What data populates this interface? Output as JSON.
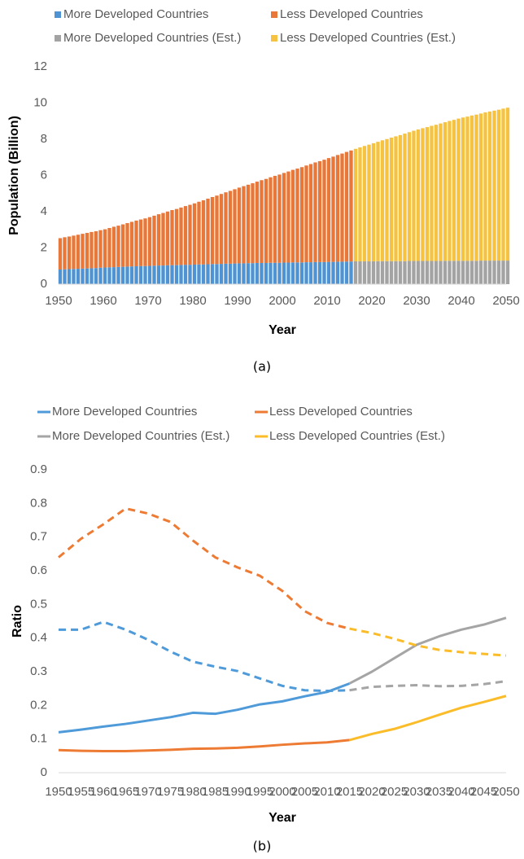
{
  "chart_data": [
    {
      "type": "bar",
      "stacked": true,
      "caption": "(a)",
      "xlabel": "Year",
      "ylabel": "Population (Billion)",
      "x": [
        1950,
        1951,
        1952,
        1953,
        1954,
        1955,
        1956,
        1957,
        1958,
        1959,
        1960,
        1961,
        1962,
        1963,
        1964,
        1965,
        1966,
        1967,
        1968,
        1969,
        1970,
        1971,
        1972,
        1973,
        1974,
        1975,
        1976,
        1977,
        1978,
        1979,
        1980,
        1981,
        1982,
        1983,
        1984,
        1985,
        1986,
        1987,
        1988,
        1989,
        1990,
        1991,
        1992,
        1993,
        1994,
        1995,
        1996,
        1997,
        1998,
        1999,
        2000,
        2001,
        2002,
        2003,
        2004,
        2005,
        2006,
        2007,
        2008,
        2009,
        2010,
        2011,
        2012,
        2013,
        2014,
        2015,
        2016,
        2017,
        2018,
        2019,
        2020,
        2021,
        2022,
        2023,
        2024,
        2025,
        2026,
        2027,
        2028,
        2029,
        2030,
        2031,
        2032,
        2033,
        2034,
        2035,
        2036,
        2037,
        2038,
        2039,
        2040,
        2041,
        2042,
        2043,
        2044,
        2045,
        2046,
        2047,
        2048,
        2049,
        2050
      ],
      "xlim": [
        1950,
        2050
      ],
      "xticks": [
        1950,
        1960,
        1970,
        1980,
        1990,
        2000,
        2010,
        2020,
        2030,
        2040,
        2050
      ],
      "ylim": [
        0,
        12
      ],
      "yticks": [
        0,
        2,
        4,
        6,
        8,
        10,
        12
      ],
      "grid": false,
      "series": [
        {
          "name": "More Developed Countries",
          "color": "#4f93d2",
          "values": [
            0.81,
            0.82,
            0.83,
            0.84,
            0.85,
            0.86,
            0.87,
            0.88,
            0.89,
            0.91,
            0.92,
            0.93,
            0.94,
            0.95,
            0.96,
            0.97,
            0.98,
            0.99,
            1.0,
            1.0,
            1.01,
            1.02,
            1.03,
            1.03,
            1.04,
            1.05,
            1.05,
            1.06,
            1.07,
            1.07,
            1.08,
            1.09,
            1.09,
            1.1,
            1.11,
            1.11,
            1.12,
            1.13,
            1.13,
            1.14,
            1.15,
            1.15,
            1.16,
            1.16,
            1.17,
            1.17,
            1.17,
            1.18,
            1.18,
            1.18,
            1.19,
            1.19,
            1.2,
            1.2,
            1.2,
            1.21,
            1.21,
            1.22,
            1.22,
            1.22,
            1.23,
            1.23,
            1.24,
            1.24,
            1.25,
            1.25,
            null,
            null,
            null,
            null,
            null,
            null,
            null,
            null,
            null,
            null,
            null,
            null,
            null,
            null,
            null,
            null,
            null,
            null,
            null,
            null,
            null,
            null,
            null,
            null,
            null,
            null,
            null,
            null,
            null,
            null,
            null,
            null,
            null,
            null,
            null
          ]
        },
        {
          "name": "Less Developed Countries",
          "color": "#e8773a",
          "values": [
            1.73,
            1.77,
            1.8,
            1.84,
            1.88,
            1.92,
            1.96,
            2.0,
            2.03,
            2.07,
            2.11,
            2.17,
            2.23,
            2.28,
            2.34,
            2.4,
            2.46,
            2.52,
            2.57,
            2.63,
            2.69,
            2.76,
            2.83,
            2.9,
            2.97,
            3.04,
            3.1,
            3.17,
            3.24,
            3.31,
            3.38,
            3.46,
            3.54,
            3.62,
            3.7,
            3.78,
            3.86,
            3.94,
            4.02,
            4.1,
            4.18,
            4.26,
            4.33,
            4.41,
            4.49,
            4.57,
            4.64,
            4.72,
            4.8,
            4.87,
            4.95,
            5.03,
            5.11,
            5.18,
            5.26,
            5.34,
            5.42,
            5.5,
            5.57,
            5.65,
            5.73,
            5.81,
            5.89,
            5.97,
            6.05,
            6.13,
            null,
            null,
            null,
            null,
            null,
            null,
            null,
            null,
            null,
            null,
            null,
            null,
            null,
            null,
            null,
            null,
            null,
            null,
            null,
            null,
            null,
            null,
            null,
            null,
            null,
            null,
            null,
            null,
            null,
            null,
            null,
            null,
            null,
            null,
            null
          ]
        },
        {
          "name": "More Developed Countries (Est.)",
          "color": "#a3a3a3",
          "values": [
            null,
            null,
            null,
            null,
            null,
            null,
            null,
            null,
            null,
            null,
            null,
            null,
            null,
            null,
            null,
            null,
            null,
            null,
            null,
            null,
            null,
            null,
            null,
            null,
            null,
            null,
            null,
            null,
            null,
            null,
            null,
            null,
            null,
            null,
            null,
            null,
            null,
            null,
            null,
            null,
            null,
            null,
            null,
            null,
            null,
            null,
            null,
            null,
            null,
            null,
            null,
            null,
            null,
            null,
            null,
            null,
            null,
            null,
            null,
            null,
            null,
            null,
            null,
            null,
            null,
            null,
            1.26,
            1.26,
            1.26,
            1.26,
            1.26,
            1.27,
            1.27,
            1.27,
            1.27,
            1.27,
            1.27,
            1.27,
            1.28,
            1.28,
            1.28,
            1.28,
            1.28,
            1.28,
            1.28,
            1.28,
            1.29,
            1.29,
            1.29,
            1.29,
            1.29,
            1.29,
            1.29,
            1.29,
            1.3,
            1.3,
            1.3,
            1.3,
            1.3,
            1.3,
            1.3
          ]
        },
        {
          "name": "Less Developed Countries (Est.)",
          "color": "#f5c242",
          "values": [
            null,
            null,
            null,
            null,
            null,
            null,
            null,
            null,
            null,
            null,
            null,
            null,
            null,
            null,
            null,
            null,
            null,
            null,
            null,
            null,
            null,
            null,
            null,
            null,
            null,
            null,
            null,
            null,
            null,
            null,
            null,
            null,
            null,
            null,
            null,
            null,
            null,
            null,
            null,
            null,
            null,
            null,
            null,
            null,
            null,
            null,
            null,
            null,
            null,
            null,
            null,
            null,
            null,
            null,
            null,
            null,
            null,
            null,
            null,
            null,
            null,
            null,
            null,
            null,
            null,
            null,
            6.21,
            6.29,
            6.37,
            6.44,
            6.52,
            6.59,
            6.67,
            6.74,
            6.82,
            6.89,
            6.96,
            7.04,
            7.11,
            7.19,
            7.26,
            7.33,
            7.39,
            7.46,
            7.52,
            7.59,
            7.65,
            7.72,
            7.78,
            7.85,
            7.91,
            7.96,
            8.02,
            8.07,
            8.12,
            8.18,
            8.23,
            8.28,
            8.33,
            8.39,
            8.44
          ]
        }
      ]
    },
    {
      "type": "line",
      "caption": "(b)",
      "xlabel": "Year",
      "ylabel": "Ratio",
      "x": [
        1950,
        1955,
        1960,
        1965,
        1970,
        1975,
        1980,
        1985,
        1990,
        1995,
        2000,
        2005,
        2010,
        2015,
        2020,
        2025,
        2030,
        2035,
        2040,
        2045,
        2050
      ],
      "xlim": [
        1950,
        2050
      ],
      "xticks": [
        1950,
        1955,
        1960,
        1965,
        1970,
        1975,
        1980,
        1985,
        1990,
        1995,
        2000,
        2005,
        2010,
        2015,
        2020,
        2025,
        2030,
        2035,
        2040,
        2045,
        2050
      ],
      "ylim": [
        0,
        0.9
      ],
      "yticks": [
        0,
        0.1,
        0.2,
        0.3,
        0.4,
        0.5,
        0.6,
        0.7,
        0.8,
        0.9
      ],
      "grid": false,
      "series": [
        {
          "name": "More Developed Countries",
          "color": "#4f9ad9",
          "dashed": false,
          "values": [
            0.12,
            0.128,
            0.137,
            0.145,
            0.155,
            0.165,
            0.178,
            0.175,
            0.187,
            0.203,
            0.212,
            0.227,
            0.24,
            0.265,
            null,
            null,
            null,
            null,
            null,
            null,
            null
          ]
        },
        {
          "name": "Less Developed Countries",
          "color": "#ee7b34",
          "dashed": false,
          "values": [
            0.067,
            0.065,
            0.064,
            0.064,
            0.066,
            0.068,
            0.071,
            0.072,
            0.074,
            0.078,
            0.083,
            0.087,
            0.09,
            0.097,
            null,
            null,
            null,
            null,
            null,
            null,
            null
          ]
        },
        {
          "name": "More Developed Countries (Est.)",
          "color": "#a5a5a5",
          "dashed": false,
          "values": [
            null,
            null,
            null,
            null,
            null,
            null,
            null,
            null,
            null,
            null,
            null,
            null,
            null,
            0.265,
            0.3,
            0.34,
            0.38,
            0.405,
            0.425,
            0.44,
            0.46
          ]
        },
        {
          "name": "Less Developed Countries (Est.)",
          "color": "#fbbc2a",
          "dashed": false,
          "values": [
            null,
            null,
            null,
            null,
            null,
            null,
            null,
            null,
            null,
            null,
            null,
            null,
            null,
            0.097,
            0.115,
            0.13,
            0.15,
            0.172,
            0.193,
            0.21,
            0.228
          ]
        },
        {
          "color": "#4f9ad9",
          "dashed": true,
          "values": [
            0.425,
            0.425,
            0.448,
            0.425,
            0.395,
            0.36,
            0.33,
            0.315,
            0.302,
            0.28,
            0.258,
            0.245,
            0.243,
            0.245,
            null,
            null,
            null,
            null,
            null,
            null,
            null
          ]
        },
        {
          "color": "#ee7b34",
          "dashed": true,
          "values": [
            0.64,
            0.695,
            0.738,
            0.785,
            0.77,
            0.745,
            0.69,
            0.64,
            0.61,
            0.585,
            0.54,
            0.48,
            0.445,
            0.428,
            null,
            null,
            null,
            null,
            null,
            null,
            null
          ]
        },
        {
          "color": "#a5a5a5",
          "dashed": true,
          "values": [
            null,
            null,
            null,
            null,
            null,
            null,
            null,
            null,
            null,
            null,
            null,
            null,
            null,
            0.245,
            0.255,
            0.258,
            0.26,
            0.257,
            0.258,
            0.263,
            0.272
          ]
        },
        {
          "color": "#fbbc2a",
          "dashed": true,
          "values": [
            null,
            null,
            null,
            null,
            null,
            null,
            null,
            null,
            null,
            null,
            null,
            null,
            null,
            0.428,
            0.415,
            0.398,
            0.378,
            0.365,
            0.358,
            0.353,
            0.348
          ]
        }
      ]
    }
  ]
}
